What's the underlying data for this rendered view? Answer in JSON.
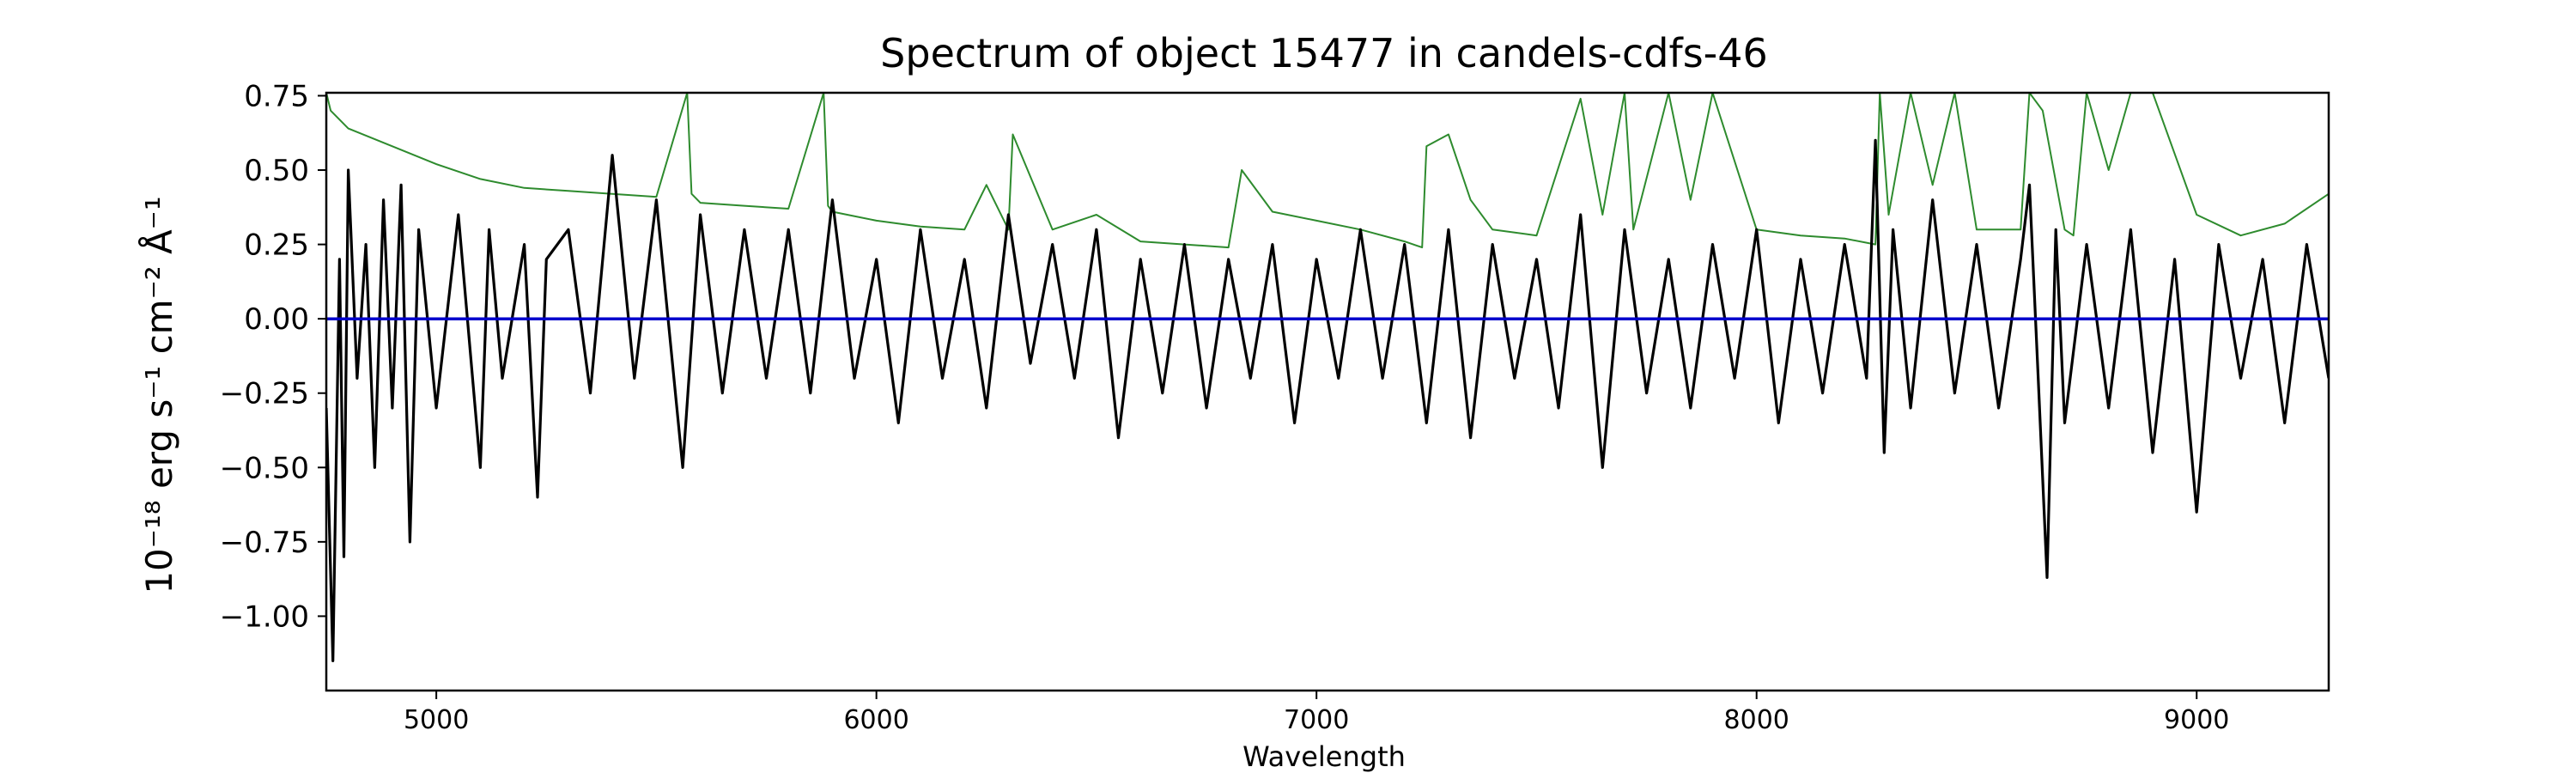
{
  "chart_data": {
    "type": "line",
    "title": "Spectrum of object 15477 in candels-cdfs-46",
    "xlabel": "Wavelength",
    "ylabel": "10⁻¹⁸ erg s⁻¹ cm⁻² Å⁻¹",
    "xlim": [
      4750,
      9300
    ],
    "ylim": [
      -1.25,
      0.76
    ],
    "xticks": [
      5000,
      6000,
      7000,
      8000,
      9000
    ],
    "xtick_labels": [
      "5000",
      "6000",
      "7000",
      "8000",
      "9000"
    ],
    "yticks": [
      0.75,
      0.5,
      0.25,
      0.0,
      -0.25,
      -0.5,
      -0.75,
      -1.0
    ],
    "ytick_labels": [
      "0.75",
      "0.50",
      "0.25",
      "0.00",
      "−0.25",
      "−0.50",
      "−0.75",
      "−1.00"
    ],
    "grid": false,
    "series": [
      {
        "color": "#2e8b2e",
        "x": [
          4750,
          4760,
          4800,
          4900,
          5000,
          5100,
          5200,
          5300,
          5400,
          5500,
          5570,
          5580,
          5600,
          5700,
          5800,
          5880,
          5890,
          5900,
          6000,
          6100,
          6200,
          6250,
          6300,
          6310,
          6400,
          6500,
          6600,
          6700,
          6800,
          6830,
          6900,
          7000,
          7100,
          7200,
          7240,
          7250,
          7300,
          7350,
          7400,
          7500,
          7600,
          7650,
          7700,
          7720,
          7800,
          7850,
          7900,
          8000,
          8100,
          8200,
          8270,
          8280,
          8300,
          8350,
          8400,
          8450,
          8500,
          8600,
          8620,
          8650,
          8700,
          8720,
          8750,
          8800,
          8850,
          8900,
          9000,
          9100,
          9200,
          9300
        ],
        "y": [
          0.76,
          0.7,
          0.64,
          0.58,
          0.52,
          0.47,
          0.44,
          0.43,
          0.42,
          0.41,
          0.76,
          0.42,
          0.39,
          0.38,
          0.37,
          0.76,
          0.38,
          0.36,
          0.33,
          0.31,
          0.3,
          0.45,
          0.3,
          0.62,
          0.3,
          0.35,
          0.26,
          0.25,
          0.24,
          0.5,
          0.36,
          0.33,
          0.3,
          0.26,
          0.24,
          0.58,
          0.62,
          0.4,
          0.3,
          0.28,
          0.74,
          0.35,
          0.76,
          0.3,
          0.76,
          0.4,
          0.76,
          0.3,
          0.28,
          0.27,
          0.25,
          0.76,
          0.35,
          0.76,
          0.45,
          0.76,
          0.3,
          0.3,
          0.76,
          0.7,
          0.3,
          0.28,
          0.76,
          0.5,
          0.76,
          0.76,
          0.35,
          0.28,
          0.32,
          0.42
        ]
      },
      {
        "color": "#000000",
        "x": [
          4750,
          4765,
          4780,
          4790,
          4800,
          4820,
          4840,
          4860,
          4880,
          4900,
          4920,
          4940,
          4960,
          5000,
          5050,
          5100,
          5120,
          5150,
          5200,
          5230,
          5250,
          5300,
          5350,
          5400,
          5450,
          5500,
          5560,
          5600,
          5650,
          5700,
          5750,
          5800,
          5850,
          5900,
          5950,
          6000,
          6050,
          6100,
          6150,
          6200,
          6250,
          6300,
          6350,
          6400,
          6450,
          6500,
          6550,
          6600,
          6650,
          6700,
          6750,
          6800,
          6850,
          6900,
          6950,
          7000,
          7050,
          7100,
          7150,
          7200,
          7250,
          7300,
          7350,
          7400,
          7450,
          7500,
          7550,
          7600,
          7650,
          7700,
          7750,
          7800,
          7850,
          7900,
          7950,
          8000,
          8050,
          8100,
          8150,
          8200,
          8250,
          8270,
          8290,
          8310,
          8350,
          8400,
          8450,
          8500,
          8550,
          8600,
          8620,
          8640,
          8660,
          8680,
          8700,
          8750,
          8800,
          8850,
          8900,
          8950,
          9000,
          9050,
          9100,
          9150,
          9200,
          9250,
          9300
        ],
        "y": [
          -0.3,
          -1.15,
          0.2,
          -0.8,
          0.5,
          -0.2,
          0.25,
          -0.5,
          0.4,
          -0.3,
          0.45,
          -0.75,
          0.3,
          -0.3,
          0.35,
          -0.5,
          0.3,
          -0.2,
          0.25,
          -0.6,
          0.2,
          0.3,
          -0.25,
          0.55,
          -0.2,
          0.4,
          -0.5,
          0.35,
          -0.25,
          0.3,
          -0.2,
          0.3,
          -0.25,
          0.4,
          -0.2,
          0.2,
          -0.35,
          0.3,
          -0.2,
          0.2,
          -0.3,
          0.35,
          -0.15,
          0.25,
          -0.2,
          0.3,
          -0.4,
          0.2,
          -0.25,
          0.25,
          -0.3,
          0.2,
          -0.2,
          0.25,
          -0.35,
          0.2,
          -0.2,
          0.3,
          -0.2,
          0.25,
          -0.35,
          0.3,
          -0.4,
          0.25,
          -0.2,
          0.2,
          -0.3,
          0.35,
          -0.5,
          0.3,
          -0.25,
          0.2,
          -0.3,
          0.25,
          -0.2,
          0.3,
          -0.35,
          0.2,
          -0.25,
          0.25,
          -0.2,
          0.6,
          -0.45,
          0.3,
          -0.3,
          0.4,
          -0.25,
          0.25,
          -0.3,
          0.2,
          0.45,
          -0.2,
          -0.87,
          0.3,
          -0.35,
          0.25,
          -0.3,
          0.3,
          -0.45,
          0.2,
          -0.65,
          0.25,
          -0.2,
          0.2,
          -0.35,
          0.25,
          -0.2
        ]
      },
      {
        "color": "#0000cc",
        "x": [
          4750,
          9300
        ],
        "y": [
          0.0,
          0.0
        ]
      }
    ]
  }
}
